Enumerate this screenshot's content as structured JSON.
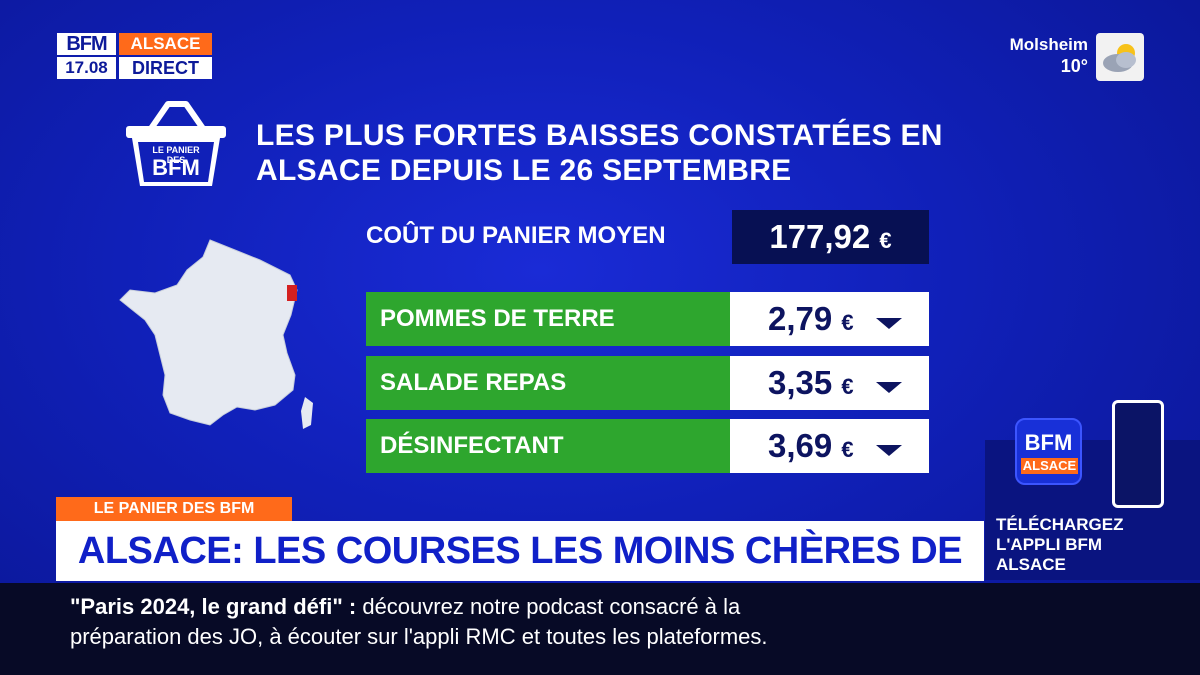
{
  "logo": {
    "brand": "BFM",
    "region": "ALSACE",
    "time": "17.08",
    "live": "DIRECT"
  },
  "weather": {
    "city": "Molsheim",
    "temp": "10°",
    "icon": "cloud-sun-icon"
  },
  "basket_logo": {
    "line1": "LE PANIER DES",
    "line2": "BFM"
  },
  "headline": "LES PLUS FORTES BAISSES CONSTATÉES EN ALSACE DEPUIS LE 26 SEPTEMBRE",
  "average": {
    "label": "COÛT DU PANIER MOYEN",
    "value": "177,92",
    "currency": "€"
  },
  "items": [
    {
      "label": "POMMES DE TERRE",
      "value": "2,79",
      "currency": "€",
      "trend": "down-arrow-icon"
    },
    {
      "label": "SALADE REPAS",
      "value": "3,35",
      "currency": "€",
      "trend": "down-arrow-icon"
    },
    {
      "label": "DÉSINFECTANT",
      "value": "3,69",
      "currency": "€",
      "trend": "down-arrow-icon"
    }
  ],
  "promo": {
    "app_brand": "BFM",
    "app_region": "ALSACE",
    "line1": "TÉLÉCHARGEZ",
    "line2": "L'APPLI BFM",
    "line3": "ALSACE"
  },
  "lower_third": {
    "tag": "LE PANIER DES BFM",
    "title": "ALSACE: LES COURSES LES MOINS CHÈRES DE FRANCE"
  },
  "ticker": {
    "quote": "\"Paris 2024, le grand défi\"",
    "sep": " : ",
    "text1": "découvrez notre podcast consacré à la",
    "text2": "préparation des JO, à écouter sur l'appli RMC et toutes les plateformes."
  },
  "colors": {
    "accent": "#ff6a1a",
    "green": "#2ea62e",
    "navy": "#071053",
    "blue": "#1020b8"
  }
}
